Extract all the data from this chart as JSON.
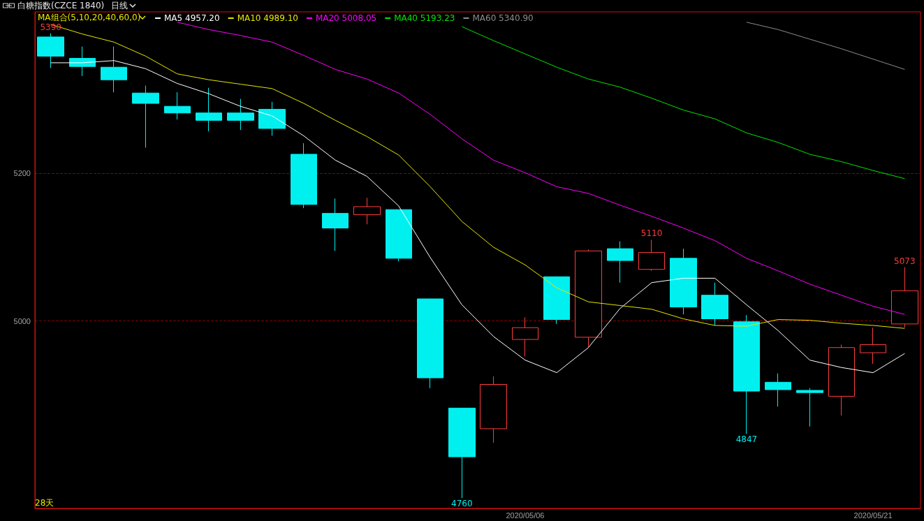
{
  "chart_data": {
    "type": "candlestick",
    "title": "白糖指数(CZCE 1840)",
    "subtitle": "日线",
    "legend_title": "MA组合(5,10,20,40,60,0)",
    "categories": [
      null,
      null,
      null,
      null,
      null,
      null,
      null,
      null,
      null,
      null,
      null,
      null,
      null,
      null,
      null,
      "2020/05/06",
      null,
      null,
      null,
      null,
      null,
      null,
      null,
      null,
      null,
      null,
      "2020/05/21",
      null
    ],
    "ohlc": [
      [
        5385,
        5390,
        5343,
        5359
      ],
      [
        5356,
        5372,
        5332,
        5345
      ],
      [
        5344,
        5372,
        5310,
        5327
      ],
      [
        5309,
        5319,
        5235,
        5295
      ],
      [
        5291,
        5310,
        5273,
        5282
      ],
      [
        5282,
        5316,
        5257,
        5272
      ],
      [
        5282,
        5301,
        5259,
        5272
      ],
      [
        5287,
        5297,
        5251,
        5261
      ],
      [
        5226,
        5241,
        5153,
        5158
      ],
      [
        5146,
        5166,
        5095,
        5126
      ],
      [
        5144,
        5167,
        5131,
        5155
      ],
      [
        5151,
        5151,
        5081,
        5085
      ],
      [
        5030,
        5030,
        4909,
        4923
      ],
      [
        4882,
        4882,
        4760,
        4816
      ],
      [
        4854,
        4925,
        4835,
        4914
      ],
      [
        4975,
        5005,
        4952,
        4991
      ],
      [
        5060,
        5060,
        4996,
        5002
      ],
      [
        4978,
        5097,
        4965,
        5095
      ],
      [
        5098,
        5108,
        5052,
        5082
      ],
      [
        5070,
        5110,
        5068,
        5093
      ],
      [
        5085,
        5098,
        5009,
        5019
      ],
      [
        5035,
        5052,
        4994,
        5003
      ],
      [
        4999,
        5008,
        4847,
        4905
      ],
      [
        4917,
        4929,
        4884,
        4907
      ],
      [
        4906,
        4909,
        4857,
        4903
      ],
      [
        4898,
        4968,
        4872,
        4964
      ],
      [
        4957,
        4991,
        4942,
        4968
      ],
      [
        4996,
        5073,
        4991,
        5041
      ]
    ],
    "colors": [
      "#00f0f0",
      "#00f0f0",
      "#00f0f0",
      "#00f0f0",
      "#00f0f0",
      "#00f0f0",
      "#00f0f0",
      "#00f0f0",
      "#00f0f0",
      "#00f0f0",
      "#ff3c3c",
      "#00f0f0",
      "#00f0f0",
      "#00f0f0",
      "#ff3c3c",
      "#ff3c3c",
      "#00f0f0",
      "#ff3c3c",
      "#00f0f0",
      "#ff3c3c",
      "#00f0f0",
      "#00f0f0",
      "#00f0f0",
      "#00f0f0",
      "#00f0f0",
      "#ff3c3c",
      "#ff3c3c",
      "#ff3c3c"
    ],
    "series": [
      {
        "name": "MA5 4957.20",
        "type": "line",
        "color": "#ffffff",
        "values": [
          5350,
          5350,
          5353,
          5342,
          5322,
          5308,
          5291,
          5278,
          5251,
          5218,
          5196,
          5156,
          5086,
          5022,
          4979,
          4947,
          4930,
          4964,
          5017,
          5052,
          5058,
          5058,
          5022,
          4987,
          4947,
          4937,
          4930,
          4956
        ]
      },
      {
        "name": "MA10 4989.10",
        "type": "line",
        "color": "#e6e600",
        "values": [
          5402,
          5389,
          5378,
          5359,
          5335,
          5327,
          5321,
          5315,
          5295,
          5272,
          5250,
          5225,
          5182,
          5135,
          5100,
          5076,
          5045,
          5026,
          5021,
          5016,
          5003,
          4994,
          4993,
          5002,
          5001,
          4997,
          4994,
          4990
        ]
      },
      {
        "name": "MA20 5008.05",
        "type": "line",
        "color": "#ff00ff",
        "values": [
          null,
          null,
          null,
          null,
          5405,
          5395,
          5387,
          5378,
          5360,
          5341,
          5328,
          5309,
          5280,
          5247,
          5218,
          5201,
          5182,
          5173,
          5157,
          5142,
          5126,
          5109,
          5085,
          5068,
          5050,
          5035,
          5020,
          5009
        ]
      },
      {
        "name": "MA40 5193.23",
        "type": "line",
        "color": "#00e600",
        "values": [
          null,
          null,
          null,
          null,
          null,
          null,
          null,
          null,
          null,
          null,
          null,
          null,
          null,
          5399,
          5380,
          5362,
          5344,
          5328,
          5317,
          5302,
          5286,
          5274,
          5255,
          5242,
          5226,
          5216,
          5204,
          5193
        ]
      },
      {
        "name": "MA60 5340.90",
        "type": "line",
        "color": "#8c8c8c",
        "values": [
          null,
          null,
          null,
          null,
          null,
          null,
          null,
          null,
          null,
          null,
          null,
          null,
          null,
          null,
          null,
          null,
          null,
          null,
          null,
          null,
          null,
          null,
          5405,
          5395,
          5382,
          5369,
          5355,
          5341
        ]
      }
    ],
    "ylim": [
      4746,
      5419
    ],
    "yticks": [
      {
        "value": 5000,
        "label": "5000"
      },
      {
        "value": 5200,
        "label": "5200"
      }
    ],
    "grid": "y",
    "legend": "top left",
    "marker": "none",
    "line_style": "solid",
    "annotations": [
      {
        "text": "5390",
        "y": 5390
      },
      {
        "text": "4760",
        "y": 4760
      },
      {
        "text": "5110",
        "y": 5110
      },
      {
        "text": "4847",
        "y": 4847
      },
      {
        "text": "5073",
        "y": 5073
      },
      "28天"
    ]
  }
}
